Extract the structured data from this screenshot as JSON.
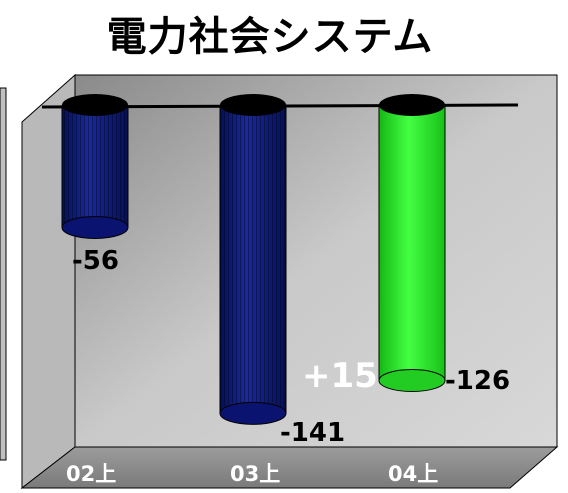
{
  "chart_data": {
    "type": "bar",
    "title": "電力社会システム",
    "categories": [
      "02上",
      "03上",
      "04上"
    ],
    "values": [
      -56,
      -141,
      -126
    ],
    "data_labels": [
      "-56",
      "-141",
      "-126"
    ],
    "bar_colors": [
      "#0a1a7a",
      "#0a1a7a",
      "#22dd22"
    ],
    "annotation": "+15",
    "ylim": [
      -150,
      0
    ],
    "grid": false,
    "style": "3d-cylinder"
  }
}
